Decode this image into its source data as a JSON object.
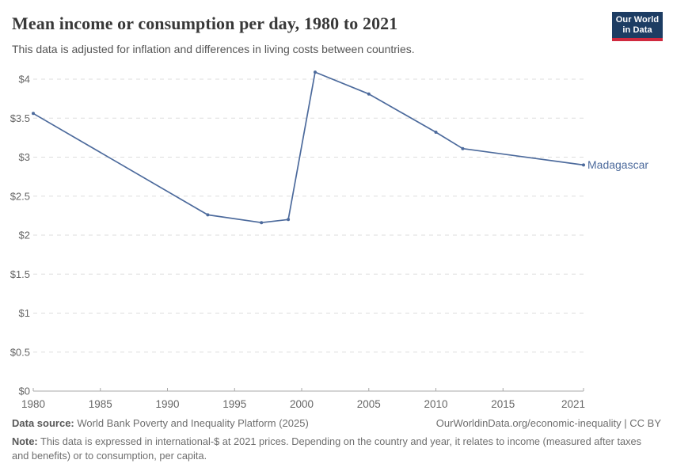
{
  "header": {
    "title": "Mean income or consumption per day, 1980 to 2021",
    "subtitle": "This data is adjusted for inflation and differences in living costs between countries.",
    "logo": {
      "line1": "Our World",
      "line2": "in Data"
    }
  },
  "chart_data": {
    "type": "line",
    "title": "Mean income or consumption per day, 1980 to 2021",
    "entity": "Madagascar",
    "x": [
      1980,
      1993,
      1997,
      1999,
      2001,
      2005,
      2010,
      2012,
      2021
    ],
    "series": [
      {
        "name": "Madagascar",
        "color": "#4C6A9C",
        "values": [
          3.56,
          2.26,
          2.16,
          2.2,
          4.09,
          3.81,
          3.32,
          3.11,
          2.9
        ]
      }
    ],
    "xlim": [
      1980,
      2021
    ],
    "ylim": [
      0,
      4.3
    ],
    "x_tick_values": [
      1980,
      1985,
      1990,
      1995,
      2000,
      2005,
      2010,
      2015,
      2021
    ],
    "x_tick_labels": [
      "1980",
      "1985",
      "1990",
      "1995",
      "2000",
      "2005",
      "2010",
      "2015",
      "2021"
    ],
    "y_tick_values": [
      0,
      0.5,
      1,
      1.5,
      2,
      2.5,
      3,
      3.5,
      4
    ],
    "y_tick_labels": [
      "$0",
      "$0.5",
      "$1",
      "$1.5",
      "$2",
      "$2.5",
      "$3",
      "$3.5",
      "$4"
    ],
    "grid": true,
    "grid_style": "dashed",
    "legend_position": "end-of-line"
  },
  "footer": {
    "datasource_label": "Data source:",
    "datasource_text": " World Bank Poverty and Inequality Platform (2025)",
    "link_text": "OurWorldinData.org/economic-inequality | CC BY",
    "note_label": "Note:",
    "note_text": " This data is expressed in international-$ at 2021 prices. Depending on the country and year, it relates to income (measured after taxes and benefits) or to consumption, per capita."
  },
  "colors": {
    "line": "#4C6A9C",
    "logo_background": "#1d3d63",
    "logo_red_bar": "#d0293e",
    "gridline": "#dddddd",
    "axis": "#a8a8a8",
    "tick_label": "#666666",
    "title": "#383838",
    "subtitle": "#555555",
    "footer_text": "#6e6e6e"
  }
}
